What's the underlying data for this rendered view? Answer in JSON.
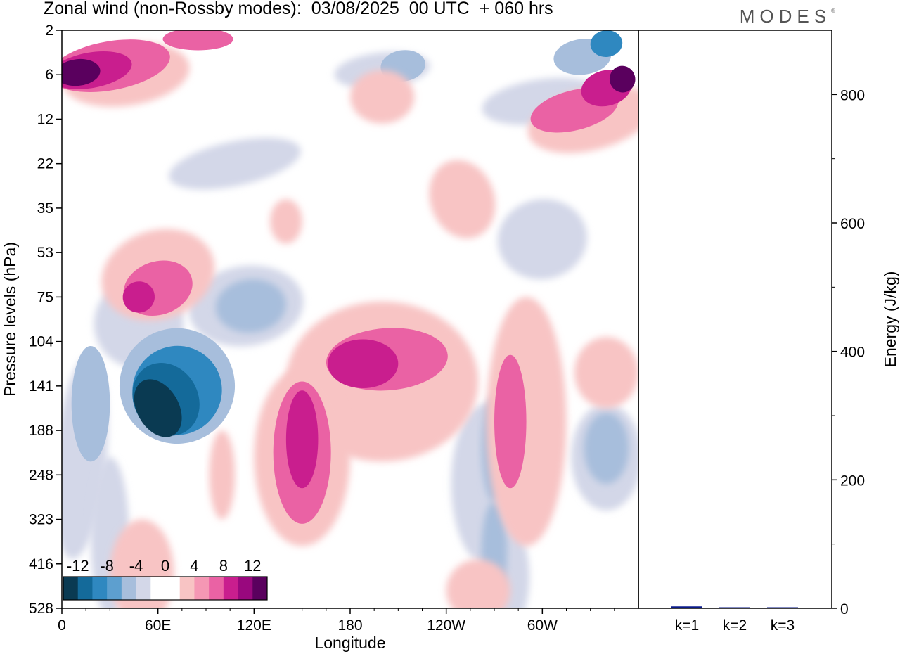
{
  "header": {
    "title": "Zonal wind (non-Rossby modes):  03/08/2025  00 UTC  + 060 hrs",
    "logo": "MODES",
    "logo_mark": "®"
  },
  "chart_data": [
    {
      "type": "heatmap",
      "title": "Zonal wind (non-Rossby modes)",
      "xlabel": "Longitude",
      "ylabel": "Pressure levels (hPa)",
      "x_ticks": [
        "0",
        "60E",
        "120E",
        "180",
        "120W",
        "60W"
      ],
      "x_tick_values": [
        0,
        60,
        120,
        180,
        240,
        300
      ],
      "xlim": [
        0,
        360
      ],
      "y_ticks": [
        "2",
        "6",
        "12",
        "22",
        "35",
        "53",
        "75",
        "104",
        "141",
        "188",
        "248",
        "323",
        "416",
        "528"
      ],
      "y_order": "top-to-bottom",
      "colorbar": {
        "labels": [
          "-12",
          "-8",
          "-4",
          "0",
          "4",
          "8",
          "12"
        ],
        "levels": [
          -14,
          -12,
          -10,
          -8,
          -6,
          -4,
          -2,
          0,
          2,
          4,
          6,
          8,
          10,
          12,
          14
        ],
        "colors": [
          "#0a3a52",
          "#146a9a",
          "#2f88c0",
          "#5d9fcf",
          "#a7bedc",
          "#d3d7e8",
          "#ffffff",
          "#ffffff",
          "#f8c4c4",
          "#f597b4",
          "#ea62a4",
          "#c91e8e",
          "#99087e",
          "#5a005e"
        ]
      },
      "features": [
        {
          "name": "strong-easterly-core",
          "lon": 68,
          "level_index": 8.2,
          "value": -13
        },
        {
          "name": "easterly-band-upper",
          "lon": 95,
          "level_index": 6.6,
          "value": -8
        },
        {
          "name": "westerly-core-mid",
          "lon": 200,
          "level_index": 7.6,
          "value": 8
        },
        {
          "name": "westerly-core-lower",
          "lon": 150,
          "level_index": 9.6,
          "value": 7
        },
        {
          "name": "stratospheric-westerly-west",
          "lon": 15,
          "level_index": 0.9,
          "value": 12
        },
        {
          "name": "stratospheric-westerly-east",
          "lon": 350,
          "level_index": 1.1,
          "value": 10
        }
      ]
    },
    {
      "type": "bar",
      "ylabel": "Energy (J/kg)",
      "categories": [
        "k=1",
        "k=2",
        "k=3"
      ],
      "values": [
        3,
        1.5,
        0.7
      ],
      "ylim": [
        0,
        900
      ],
      "y_ticks": [
        0,
        200,
        400,
        600,
        800
      ],
      "bar_color": "#0a1a8a"
    }
  ]
}
